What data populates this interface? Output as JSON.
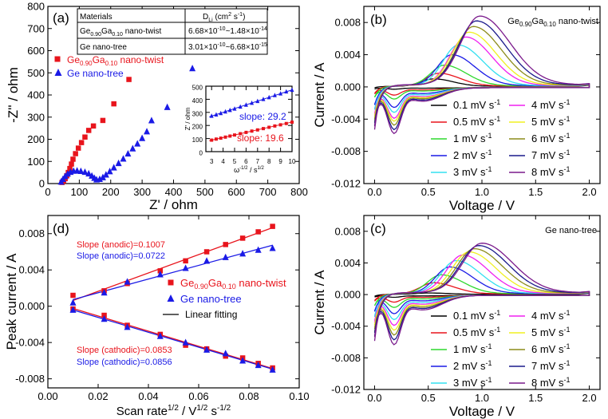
{
  "colors": {
    "red": "#e8141c",
    "blue": "#1a1ae6",
    "black": "#000000",
    "green": "#2ed82e",
    "navy": "#1a1a8c",
    "cyan": "#33e0f0",
    "magenta": "#f020f0",
    "yellow": "#f0f020",
    "olive": "#8c8c1a",
    "purple": "#7a1a8c"
  },
  "chart_data": [
    {
      "panel": "(a)",
      "type": "scatter",
      "xlabel": "Z' / ohm",
      "ylabel": "-Z'' / ohm",
      "xlim": [
        0,
        800
      ],
      "ylim": [
        0,
        800
      ],
      "xticks": [
        "0",
        "100",
        "200",
        "300",
        "400",
        "500",
        "600",
        "700",
        "800"
      ],
      "yticks": [
        "0",
        "100",
        "200",
        "300",
        "400",
        "500",
        "600",
        "700",
        "800"
      ],
      "legend": [
        "Ge0.90Ga0.10 nano-twist",
        "Ge nano-tree"
      ],
      "series": [
        {
          "name": "Ge0.90Ga0.10 nano-twist",
          "color": "red",
          "marker": "square",
          "points": [
            [
              45,
              5
            ],
            [
              50,
              12
            ],
            [
              55,
              22
            ],
            [
              60,
              35
            ],
            [
              65,
              50
            ],
            [
              70,
              68
            ],
            [
              75,
              88
            ],
            [
              80,
              110
            ],
            [
              88,
              135
            ],
            [
              97,
              160
            ],
            [
              107,
              185
            ],
            [
              118,
              210
            ],
            [
              130,
              240
            ],
            [
              145,
              260
            ],
            [
              175,
              285
            ],
            [
              210,
              360
            ],
            [
              258,
              470
            ]
          ]
        },
        {
          "name": "Ge nano-tree",
          "color": "blue",
          "marker": "triangle",
          "points": [
            [
              42,
              8
            ],
            [
              48,
              20
            ],
            [
              55,
              33
            ],
            [
              63,
              44
            ],
            [
              72,
              52
            ],
            [
              82,
              57
            ],
            [
              93,
              58
            ],
            [
              105,
              56
            ],
            [
              118,
              52
            ],
            [
              130,
              45
            ],
            [
              140,
              35
            ],
            [
              148,
              25
            ],
            [
              155,
              18
            ],
            [
              165,
              20
            ],
            [
              175,
              28
            ],
            [
              185,
              40
            ],
            [
              197,
              55
            ],
            [
              210,
              72
            ],
            [
              225,
              92
            ],
            [
              240,
              112
            ],
            [
              255,
              135
            ],
            [
              270,
              158
            ],
            [
              285,
              180
            ],
            [
              300,
              205
            ],
            [
              315,
              235
            ],
            [
              330,
              285
            ],
            [
              380,
              345
            ],
            [
              460,
              520
            ]
          ]
        }
      ],
      "table": {
        "headers": [
          "Materials",
          "D",
          "Li",
          " (cm",
          "2",
          " s",
          "-1",
          ")"
        ],
        "rows": [
          {
            "name": "Ge",
            "sub1": "0.90",
            "mid": "Ga",
            "sub2": "0.10",
            "tail": " nano-twist",
            "d": "6.68×10",
            "e1": "-10",
            "d2": "~1.48×10",
            "e2": "-14"
          },
          {
            "name": "Ge nano-tree",
            "sub1": "",
            "mid": "",
            "sub2": "",
            "tail": "",
            "d": "3.01×10",
            "e1": "-10",
            "d2": "~6.68×10",
            "e2": "-15"
          }
        ]
      },
      "inset": {
        "xlabel": "ω",
        "xlabel_sup": "-1/2",
        "xlabel_unit": " / s",
        "xlabel_unit_sup": "1/2",
        "ylabel": "Z' / ohm",
        "xlim": [
          2.5,
          10
        ],
        "ylim": [
          0,
          500
        ],
        "xticks": [
          "3",
          "4",
          "5",
          "6",
          "7",
          "8",
          "9",
          "10"
        ],
        "yticks": [
          "0",
          "100",
          "200",
          "300",
          "400",
          "500"
        ],
        "slope_blue": "slope: 29.2",
        "slope_red": "slope: 19.6",
        "blue_points": [
          [
            3.0,
            272
          ],
          [
            3.4,
            282
          ],
          [
            3.8,
            293
          ],
          [
            4.2,
            305
          ],
          [
            4.6,
            316
          ],
          [
            5.0,
            327
          ],
          [
            5.5,
            342
          ],
          [
            6.0,
            357
          ],
          [
            6.5,
            371
          ],
          [
            7.0,
            385
          ],
          [
            7.5,
            400
          ],
          [
            8.0,
            414
          ],
          [
            8.5,
            430
          ],
          [
            9.0,
            443
          ],
          [
            9.5,
            458
          ],
          [
            10.0,
            470
          ]
        ],
        "red_points": [
          [
            3.0,
            88
          ],
          [
            3.4,
            96
          ],
          [
            3.8,
            103
          ],
          [
            4.2,
            111
          ],
          [
            4.6,
            119
          ],
          [
            5.0,
            127
          ],
          [
            5.5,
            137
          ],
          [
            6.0,
            147
          ],
          [
            6.5,
            157
          ],
          [
            7.0,
            166
          ],
          [
            7.5,
            176
          ],
          [
            8.0,
            186
          ],
          [
            8.5,
            196
          ],
          [
            9.0,
            205
          ],
          [
            9.5,
            215
          ],
          [
            10.0,
            225
          ]
        ]
      }
    },
    {
      "panel": "(b)",
      "type": "line",
      "title": "Ge0.90Ga0.10 nano-twist",
      "xlabel": "Voltage / V",
      "ylabel": "Current / A",
      "xlim": [
        -0.1,
        2.1
      ],
      "ylim": [
        -0.012,
        0.01
      ],
      "xticks": [
        "0.0",
        "0.5",
        "1.0",
        "1.5",
        "2.0"
      ],
      "yticks": [
        "-0.012",
        "-0.008",
        "-0.004",
        "0.000",
        "0.004",
        "0.008"
      ],
      "legend_unit": "mV s",
      "legend_unit_sup": "-1",
      "series": [
        {
          "name": "0.1",
          "color": "black",
          "anodic_peak": [
            0.55,
            0.001
          ],
          "low": -0.0003,
          "top0": 0.0004
        },
        {
          "name": "0.5",
          "color": "red",
          "anodic_peak": [
            0.6,
            0.0017
          ],
          "low": -0.0015,
          "top0": 0.0006
        },
        {
          "name": "1",
          "color": "green",
          "anodic_peak": [
            0.65,
            0.0027
          ],
          "low": -0.0023,
          "top0": 0.0007
        },
        {
          "name": "2",
          "color": "blue",
          "anodic_peak": [
            0.72,
            0.004
          ],
          "low": -0.004,
          "top0": 0.0008
        },
        {
          "name": "3",
          "color": "cyan",
          "anodic_peak": [
            0.78,
            0.0052
          ],
          "low": -0.005,
          "top0": 0.0009
        },
        {
          "name": "4",
          "color": "magenta",
          "anodic_peak": [
            0.85,
            0.0062
          ],
          "low": -0.0062,
          "top0": 0.001
        },
        {
          "name": "5",
          "color": "yellow",
          "anodic_peak": [
            0.88,
            0.0068
          ],
          "low": -0.0068,
          "top0": 0.0011
        },
        {
          "name": "6",
          "color": "olive",
          "anodic_peak": [
            0.92,
            0.0075
          ],
          "low": -0.0076,
          "top0": 0.0012
        },
        {
          "name": "7",
          "color": "navy",
          "anodic_peak": [
            0.95,
            0.0082
          ],
          "low": -0.0085,
          "top0": 0.0013
        },
        {
          "name": "8",
          "color": "purple",
          "anodic_peak": [
            0.98,
            0.0088
          ],
          "low": -0.0093,
          "top0": 0.0014
        }
      ]
    },
    {
      "panel": "(c)",
      "type": "line",
      "title": "Ge nano-tree",
      "xlabel": "Voltage / V",
      "ylabel": "Current / A",
      "xlim": [
        -0.1,
        2.1
      ],
      "ylim": [
        -0.012,
        0.01
      ],
      "xticks": [
        "0.0",
        "0.5",
        "1.0",
        "1.5",
        "2.0"
      ],
      "yticks": [
        "-0.012",
        "-0.008",
        "-0.004",
        "0.000",
        "0.004",
        "0.008"
      ],
      "legend_unit": "mV s",
      "legend_unit_sup": "-1",
      "series": [
        {
          "name": "0.1",
          "color": "black",
          "anodic_peak": [
            0.5,
            0.0002
          ],
          "low": -0.0004,
          "top0": 0.0002
        },
        {
          "name": "0.5",
          "color": "red",
          "anodic_peak": [
            0.55,
            0.0015
          ],
          "low": -0.0014,
          "top0": 0.0005
        },
        {
          "name": "1",
          "color": "green",
          "anodic_peak": [
            0.62,
            0.0025
          ],
          "low": -0.0025,
          "top0": 0.0006
        },
        {
          "name": "2",
          "color": "blue",
          "anodic_peak": [
            0.7,
            0.0035
          ],
          "low": -0.0038,
          "top0": 0.0007
        },
        {
          "name": "3",
          "color": "cyan",
          "anodic_peak": [
            0.76,
            0.0043
          ],
          "low": -0.005,
          "top0": 0.0008
        },
        {
          "name": "4",
          "color": "magenta",
          "anodic_peak": [
            0.82,
            0.005
          ],
          "low": -0.0062,
          "top0": 0.0009
        },
        {
          "name": "5",
          "color": "yellow",
          "anodic_peak": [
            0.88,
            0.0054
          ],
          "low": -0.0072,
          "top0": 0.001
        },
        {
          "name": "6",
          "color": "olive",
          "anodic_peak": [
            0.93,
            0.0058
          ],
          "low": -0.0082,
          "top0": 0.0011
        },
        {
          "name": "7",
          "color": "navy",
          "anodic_peak": [
            0.97,
            0.0062
          ],
          "low": -0.0092,
          "top0": 0.0012
        },
        {
          "name": "8",
          "color": "purple",
          "anodic_peak": [
            1.0,
            0.0065
          ],
          "low": -0.0102,
          "top0": 0.0013
        }
      ]
    },
    {
      "panel": "(d)",
      "type": "scatter",
      "xlabel": "Scan rate",
      "xlabel_sup": "1/2",
      "xlabel_unit": " / V",
      "xlabel_unit_sup": "1/2",
      "xlabel_unit2": " s",
      "xlabel_unit2_sup": "-1/2",
      "ylabel": "Peak current / A",
      "xlim": [
        0.0,
        0.1
      ],
      "ylim": [
        -0.009,
        0.01
      ],
      "xticks": [
        "0.00",
        "0.02",
        "0.04",
        "0.06",
        "0.08",
        "0.10"
      ],
      "yticks": [
        "-0.008",
        "-0.004",
        "0.000",
        "0.004",
        "0.008"
      ],
      "x": [
        0.01,
        0.0224,
        0.0316,
        0.0447,
        0.0548,
        0.0632,
        0.0707,
        0.0775,
        0.0837,
        0.0894
      ],
      "series": [
        {
          "name": "Ge0.90Ga0.10 nano-twist",
          "color": "red",
          "marker": "square",
          "anodic": [
            0.0012,
            0.0017,
            0.0025,
            0.0039,
            0.005,
            0.006,
            0.0068,
            0.0075,
            0.0082,
            0.0088
          ],
          "cathodic": [
            -0.0003,
            -0.001,
            -0.0021,
            -0.0031,
            -0.0043,
            -0.0047,
            -0.0055,
            -0.0057,
            -0.0063,
            -0.0068
          ]
        },
        {
          "name": "Ge nano-tree",
          "color": "blue",
          "marker": "triangle",
          "anodic": [
            0.0004,
            0.0015,
            0.0027,
            0.0035,
            0.0042,
            0.005,
            0.0054,
            0.0058,
            0.0062,
            0.0064
          ],
          "cathodic": [
            -0.0004,
            -0.0014,
            -0.0023,
            -0.0033,
            -0.004,
            -0.0048,
            -0.0052,
            -0.006,
            -0.0065,
            -0.007
          ]
        }
      ],
      "fit_line_label": "Linear fitting",
      "annotations": [
        {
          "text": "Slope (anodic)=0.1007",
          "color": "red"
        },
        {
          "text": "Slope (anodic)=0.0722",
          "color": "blue"
        },
        {
          "text": "Slope (cathodic)=0.0853",
          "color": "red"
        },
        {
          "text": "Slope (cathodic)=0.0856",
          "color": "blue"
        }
      ]
    }
  ]
}
